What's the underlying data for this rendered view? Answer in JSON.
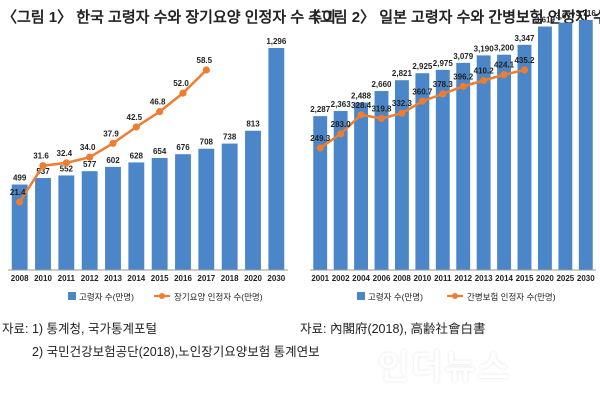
{
  "left": {
    "title": "〈그림 1〉 한국 고령자 수와 장기요양 인정자 수 추이",
    "source_line1": "자료: 1) 통계청, 국가통계포털",
    "source_line2": "2) 국민건강보험공단(2018),노인장기요양보험 통계연보",
    "chart_data": {
      "type": "bar",
      "categories": [
        "2008",
        "2010",
        "2011",
        "2012",
        "2013",
        "2014",
        "2015",
        "2016",
        "2017",
        "2018",
        "2020",
        "2030"
      ],
      "series": [
        {
          "name": "고령자 수(만명)",
          "kind": "bar",
          "color": "#4a86c8",
          "values": [
            499,
            537,
            552,
            577,
            602,
            628,
            654,
            676,
            708,
            738,
            813,
            1296
          ]
        },
        {
          "name": "장기요양 인정자 수(만명)",
          "kind": "line",
          "color": "#ed7d31",
          "values": [
            21.4,
            31.6,
            32.4,
            34.0,
            37.9,
            42.5,
            46.8,
            52.0,
            58.5,
            null,
            null,
            null
          ]
        }
      ],
      "legend_position": "bottom"
    }
  },
  "right": {
    "title": "〈그림 2〉 일본 고령자 수와 간병보험 인정자 수",
    "source": "자료: 內閣府(2018), 高齢社會白書",
    "chart_data": {
      "type": "bar",
      "categories": [
        "2001",
        "2002",
        "2004",
        "2006",
        "2008",
        "2010",
        "2011",
        "2012",
        "2013",
        "2014",
        "2015",
        "2020",
        "2025",
        "2030"
      ],
      "series": [
        {
          "name": "고령자 수(만명)",
          "kind": "bar",
          "color": "#4a86c8",
          "values": [
            2287,
            2363,
            2488,
            2660,
            2821,
            2925,
            2975,
            3079,
            3190,
            3200,
            3347,
            3619,
            3677,
            3716
          ]
        },
        {
          "name": "간병보험 인정자 수(만명)",
          "kind": "line",
          "color": "#ed7d31",
          "values": [
            249.3,
            283.0,
            328.4,
            319.8,
            332.3,
            360.7,
            378.3,
            396.2,
            410.2,
            424.1,
            435.2,
            null,
            null,
            null
          ]
        }
      ],
      "legend_position": "bottom"
    }
  },
  "watermark": "인더뉴스"
}
